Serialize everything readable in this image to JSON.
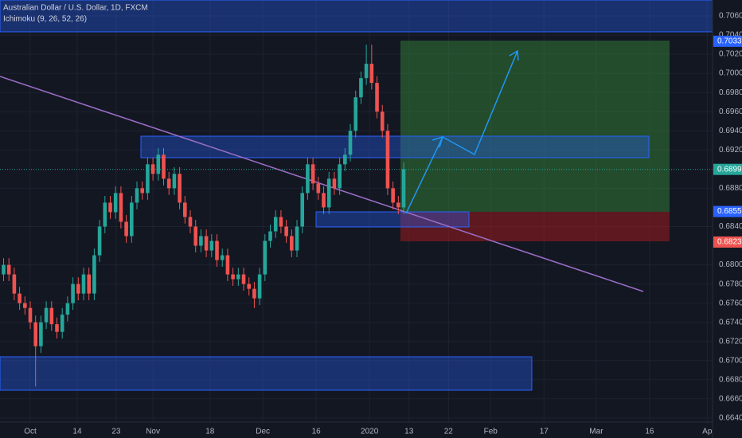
{
  "chart_data": {
    "type": "candlestick",
    "title": "Australian Dollar / U.S. Dollar, 1D, FXCM",
    "subtitle": "Ichimoku (9, 26, 52, 26)",
    "up_color": "#26a69a",
    "down_color": "#ef5350",
    "grid": true,
    "open": [
      0.679,
      0.68,
      0.679,
      0.677,
      0.676,
      0.6755,
      0.674,
      0.6715,
      0.674,
      0.6755,
      0.6738,
      0.673,
      0.6748,
      0.676,
      0.678,
      0.677,
      0.679,
      0.677,
      0.681,
      0.684,
      0.6865,
      0.6855,
      0.6875,
      0.6845,
      0.683,
      0.6865,
      0.688,
      0.6875,
      0.6905,
      0.6895,
      0.6915,
      0.689,
      0.688,
      0.6895,
      0.6865,
      0.685,
      0.684,
      0.682,
      0.683,
      0.6815,
      0.6825,
      0.6805,
      0.681,
      0.679,
      0.6785,
      0.679,
      0.678,
      0.6775,
      0.6765,
      0.679,
      0.6825,
      0.6835,
      0.685,
      0.684,
      0.683,
      0.6815,
      0.684,
      0.6875,
      0.6905,
      0.6885,
      0.6875,
      0.686,
      0.689,
      0.688,
      0.6905,
      0.6915,
      0.694,
      0.6975,
      0.6995,
      0.701,
      0.699,
      0.696,
      0.694,
      0.688,
      0.6865,
      0.686
    ],
    "high": [
      0.6807,
      0.6807,
      0.6797,
      0.6777,
      0.6767,
      0.6762,
      0.6747,
      0.6747,
      0.6762,
      0.6762,
      0.6745,
      0.6755,
      0.6767,
      0.6787,
      0.6787,
      0.6797,
      0.6797,
      0.6817,
      0.6847,
      0.6872,
      0.6872,
      0.6882,
      0.6882,
      0.6852,
      0.6872,
      0.6887,
      0.6887,
      0.6912,
      0.6912,
      0.6922,
      0.6922,
      0.6897,
      0.6902,
      0.6902,
      0.6872,
      0.6857,
      0.6847,
      0.6837,
      0.6837,
      0.6832,
      0.6832,
      0.6817,
      0.6817,
      0.6797,
      0.6797,
      0.6797,
      0.6787,
      0.6782,
      0.6797,
      0.6832,
      0.6842,
      0.6857,
      0.6857,
      0.6847,
      0.6837,
      0.6847,
      0.6882,
      0.6912,
      0.6912,
      0.6892,
      0.6882,
      0.6897,
      0.6897,
      0.6912,
      0.6922,
      0.6947,
      0.6982,
      0.7002,
      0.703,
      0.703,
      0.6997,
      0.6967,
      0.6947,
      0.6887,
      0.6872,
      0.6907
    ],
    "low": [
      0.6783,
      0.6783,
      0.6763,
      0.6753,
      0.6748,
      0.6733,
      0.6673,
      0.6708,
      0.6733,
      0.6731,
      0.6723,
      0.6723,
      0.6741,
      0.6753,
      0.6763,
      0.6763,
      0.6763,
      0.6763,
      0.6803,
      0.6833,
      0.6848,
      0.6848,
      0.6838,
      0.6823,
      0.6823,
      0.6858,
      0.6868,
      0.6868,
      0.6888,
      0.6888,
      0.6883,
      0.6873,
      0.6873,
      0.6858,
      0.6843,
      0.6833,
      0.6813,
      0.6813,
      0.6808,
      0.6808,
      0.6798,
      0.6798,
      0.6783,
      0.6778,
      0.6778,
      0.6773,
      0.6768,
      0.6755,
      0.6758,
      0.6783,
      0.6818,
      0.6828,
      0.6833,
      0.6823,
      0.6808,
      0.6808,
      0.6833,
      0.6868,
      0.6878,
      0.6868,
      0.6853,
      0.6853,
      0.6873,
      0.6873,
      0.6898,
      0.6908,
      0.6933,
      0.6968,
      0.6988,
      0.6983,
      0.6953,
      0.6933,
      0.6873,
      0.6858,
      0.6853,
      0.6853
    ],
    "close": [
      0.68,
      0.679,
      0.677,
      0.676,
      0.6755,
      0.674,
      0.6715,
      0.674,
      0.6755,
      0.6738,
      0.673,
      0.6748,
      0.676,
      0.678,
      0.677,
      0.679,
      0.677,
      0.681,
      0.684,
      0.6865,
      0.6855,
      0.6875,
      0.6845,
      0.683,
      0.6865,
      0.688,
      0.6875,
      0.6905,
      0.6895,
      0.6915,
      0.689,
      0.688,
      0.6895,
      0.6865,
      0.685,
      0.684,
      0.682,
      0.683,
      0.6815,
      0.6825,
      0.6805,
      0.681,
      0.679,
      0.6785,
      0.679,
      0.678,
      0.6775,
      0.6765,
      0.679,
      0.6825,
      0.6835,
      0.685,
      0.684,
      0.683,
      0.6815,
      0.684,
      0.6875,
      0.6905,
      0.6885,
      0.6875,
      0.686,
      0.689,
      0.688,
      0.6905,
      0.6915,
      0.694,
      0.6975,
      0.6995,
      0.701,
      0.699,
      0.696,
      0.694,
      0.688,
      0.6865,
      0.686,
      0.69
    ],
    "xlim": [
      -0.67,
      132.9
    ],
    "xticks": [
      {
        "value": 5,
        "label": "Oct"
      },
      {
        "value": 13.8,
        "label": "14"
      },
      {
        "value": 21.1,
        "label": "23"
      },
      {
        "value": 28,
        "label": "Nov"
      },
      {
        "value": 38.7,
        "label": "18"
      },
      {
        "value": 48.6,
        "label": "Dec"
      },
      {
        "value": 58.6,
        "label": "16"
      },
      {
        "value": 68.6,
        "label": "2020"
      },
      {
        "value": 76,
        "label": "13"
      },
      {
        "value": 83.4,
        "label": "22"
      },
      {
        "value": 91.3,
        "label": "Feb"
      },
      {
        "value": 101.3,
        "label": "17"
      },
      {
        "value": 111.1,
        "label": "Mar"
      },
      {
        "value": 121.1,
        "label": "16"
      },
      {
        "value": 131.9,
        "label": "Ap"
      }
    ],
    "ylim": [
      0.66358,
      0.70766
    ],
    "yticks": [
      {
        "value": 0.706,
        "label": "0.70600"
      },
      {
        "value": 0.704,
        "label": "0.70400"
      },
      {
        "value": 0.702,
        "label": "0.70200"
      },
      {
        "value": 0.7,
        "label": "0.70000"
      },
      {
        "value": 0.698,
        "label": "0.69800"
      },
      {
        "value": 0.696,
        "label": "0.69600"
      },
      {
        "value": 0.694,
        "label": "0.69400"
      },
      {
        "value": 0.692,
        "label": "0.69200"
      },
      {
        "value": 0.688,
        "label": "0.68800"
      },
      {
        "value": 0.684,
        "label": "0.68400"
      },
      {
        "value": 0.68,
        "label": "0.68000"
      },
      {
        "value": 0.678,
        "label": "0.67800"
      },
      {
        "value": 0.676,
        "label": "0.67600"
      },
      {
        "value": 0.674,
        "label": "0.67400"
      },
      {
        "value": 0.672,
        "label": "0.67200"
      },
      {
        "value": 0.67,
        "label": "0.67000"
      },
      {
        "value": 0.668,
        "label": "0.66800"
      },
      {
        "value": 0.666,
        "label": "0.66600"
      },
      {
        "value": 0.664,
        "label": "0.66400"
      }
    ],
    "price_labels": [
      0.70335,
      0.68997,
      0.68557,
      0.68238
    ],
    "price_label_colors": [
      "#2962ff",
      "#26a69a",
      "#2962ff",
      "#ef5350"
    ]
  }
}
